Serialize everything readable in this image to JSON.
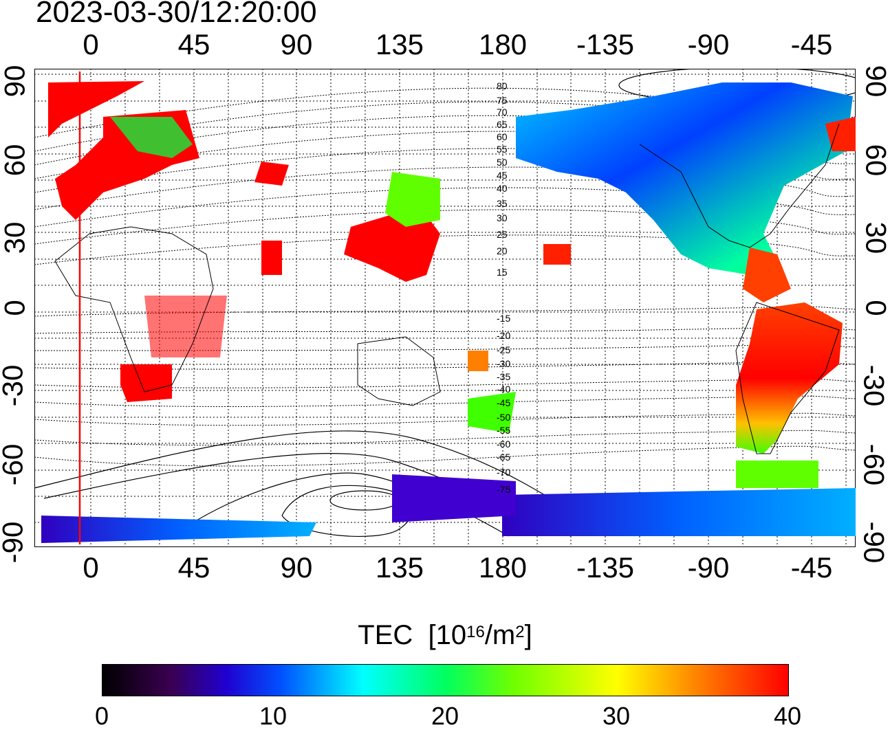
{
  "title": "2023-03-30/12:20:00",
  "top_lon_ticks": [
    "0",
    "45",
    "90",
    "135",
    "180",
    "-135",
    "-90",
    "-45"
  ],
  "bottom_lon_ticks": [
    "0",
    "45",
    "90",
    "135",
    "180",
    "-135",
    "-90",
    "-45"
  ],
  "left_lat_ticks": [
    "90",
    "60",
    "30",
    "0",
    "-30",
    "-60",
    "-90"
  ],
  "right_lat_ticks": [
    "90",
    "60",
    "30",
    "0",
    "-30",
    "-60",
    "-90"
  ],
  "contour_labels": [
    "80",
    "75",
    "70",
    "65",
    "60",
    "55",
    "50",
    "45",
    "40",
    "35",
    "30",
    "25",
    "20",
    "15",
    "-15",
    "-20",
    "-25",
    "-30",
    "-35",
    "-40",
    "-45",
    "-50",
    "-55",
    "-60",
    "-65",
    "-70",
    "-75"
  ],
  "colorbar": {
    "title": "TEC",
    "unit_base": "[10",
    "unit_exp": "16",
    "unit_mid": "/m",
    "unit_sq": "2",
    "unit_end": "]",
    "ticks": [
      "0",
      "10",
      "20",
      "30",
      "40"
    ]
  },
  "colors": {
    "high": "#ff0000",
    "mid": "#00ff40",
    "low": "#0000ff",
    "terminator": "#ff0000"
  }
}
